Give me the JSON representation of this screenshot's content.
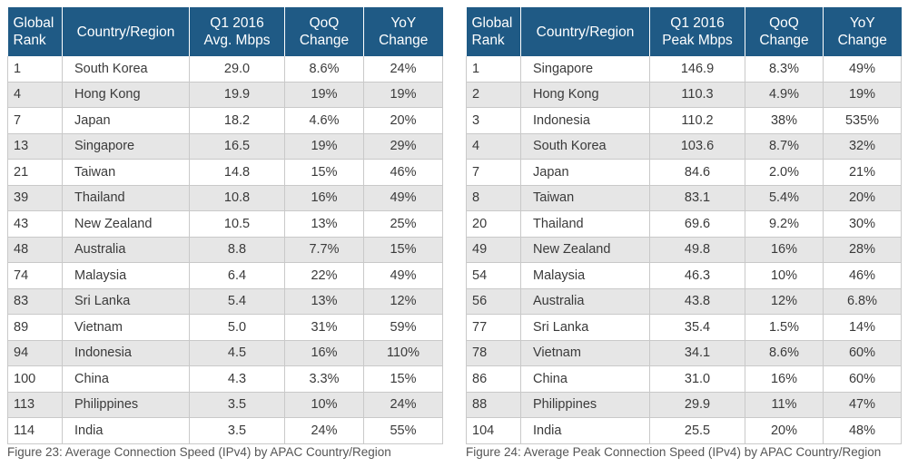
{
  "figure23": {
    "headers": {
      "rank_line1": "Global",
      "rank_line2": "Rank",
      "country": "Country/Region",
      "speed_line1": "Q1 2016",
      "speed_line2": "Avg. Mbps",
      "qoq_line1": "QoQ",
      "qoq_line2": "Change",
      "yoy_line1": "YoY",
      "yoy_line2": "Change"
    },
    "rows": [
      {
        "rank": "1",
        "country": "South Korea",
        "speed": "29.0",
        "qoq": "8.6%",
        "yoy": "24%"
      },
      {
        "rank": "4",
        "country": "Hong Kong",
        "speed": "19.9",
        "qoq": "19%",
        "yoy": "19%"
      },
      {
        "rank": "7",
        "country": "Japan",
        "speed": "18.2",
        "qoq": "4.6%",
        "yoy": "20%"
      },
      {
        "rank": "13",
        "country": "Singapore",
        "speed": "16.5",
        "qoq": "19%",
        "yoy": "29%"
      },
      {
        "rank": "21",
        "country": "Taiwan",
        "speed": "14.8",
        "qoq": "15%",
        "yoy": "46%"
      },
      {
        "rank": "39",
        "country": "Thailand",
        "speed": "10.8",
        "qoq": "16%",
        "yoy": "49%"
      },
      {
        "rank": "43",
        "country": "New Zealand",
        "speed": "10.5",
        "qoq": "13%",
        "yoy": "25%"
      },
      {
        "rank": "48",
        "country": "Australia",
        "speed": "8.8",
        "qoq": "7.7%",
        "yoy": "15%"
      },
      {
        "rank": "74",
        "country": "Malaysia",
        "speed": "6.4",
        "qoq": "22%",
        "yoy": "49%"
      },
      {
        "rank": "83",
        "country": "Sri Lanka",
        "speed": "5.4",
        "qoq": "13%",
        "yoy": "12%"
      },
      {
        "rank": "89",
        "country": "Vietnam",
        "speed": "5.0",
        "qoq": "31%",
        "yoy": "59%"
      },
      {
        "rank": "94",
        "country": "Indonesia",
        "speed": "4.5",
        "qoq": "16%",
        "yoy": "110%"
      },
      {
        "rank": "100",
        "country": "China",
        "speed": "4.3",
        "qoq": "3.3%",
        "yoy": "15%"
      },
      {
        "rank": "113",
        "country": "Philippines",
        "speed": "3.5",
        "qoq": "10%",
        "yoy": "24%"
      },
      {
        "rank": "114",
        "country": "India",
        "speed": "3.5",
        "qoq": "24%",
        "yoy": "55%"
      }
    ],
    "caption": "Figure 23: Average Connection Speed (IPv4) by APAC Country/Region"
  },
  "figure24": {
    "headers": {
      "rank_line1": "Global",
      "rank_line2": "Rank",
      "country": "Country/Region",
      "speed_line1": "Q1 2016",
      "speed_line2": "Peak Mbps",
      "qoq_line1": "QoQ",
      "qoq_line2": "Change",
      "yoy_line1": "YoY",
      "yoy_line2": "Change"
    },
    "rows": [
      {
        "rank": "1",
        "country": "Singapore",
        "speed": "146.9",
        "qoq": "8.3%",
        "yoy": "49%"
      },
      {
        "rank": "2",
        "country": "Hong Kong",
        "speed": "110.3",
        "qoq": "4.9%",
        "yoy": "19%"
      },
      {
        "rank": "3",
        "country": "Indonesia",
        "speed": "110.2",
        "qoq": "38%",
        "yoy": "535%"
      },
      {
        "rank": "4",
        "country": "South Korea",
        "speed": "103.6",
        "qoq": "8.7%",
        "yoy": "32%"
      },
      {
        "rank": "7",
        "country": "Japan",
        "speed": "84.6",
        "qoq": "2.0%",
        "yoy": "21%"
      },
      {
        "rank": "8",
        "country": "Taiwan",
        "speed": "83.1",
        "qoq": "5.4%",
        "yoy": "20%"
      },
      {
        "rank": "20",
        "country": "Thailand",
        "speed": "69.6",
        "qoq": "9.2%",
        "yoy": "30%"
      },
      {
        "rank": "49",
        "country": "New Zealand",
        "speed": "49.8",
        "qoq": "16%",
        "yoy": "28%"
      },
      {
        "rank": "54",
        "country": "Malaysia",
        "speed": "46.3",
        "qoq": "10%",
        "yoy": "46%"
      },
      {
        "rank": "56",
        "country": "Australia",
        "speed": "43.8",
        "qoq": "12%",
        "yoy": "6.8%"
      },
      {
        "rank": "77",
        "country": "Sri Lanka",
        "speed": "35.4",
        "qoq": "1.5%",
        "yoy": "14%"
      },
      {
        "rank": "78",
        "country": "Vietnam",
        "speed": "34.1",
        "qoq": "8.6%",
        "yoy": "60%"
      },
      {
        "rank": "86",
        "country": "China",
        "speed": "31.0",
        "qoq": "16%",
        "yoy": "60%"
      },
      {
        "rank": "88",
        "country": "Philippines",
        "speed": "29.9",
        "qoq": "11%",
        "yoy": "47%"
      },
      {
        "rank": "104",
        "country": "India",
        "speed": "25.5",
        "qoq": "20%",
        "yoy": "48%"
      }
    ],
    "caption": "Figure 24: Average Peak Connection Speed (IPv4) by APAC Country/Region"
  },
  "colors": {
    "header_bg": "#1f5a85",
    "stripe": "#e6e6e6",
    "border": "#c9c9c9"
  }
}
